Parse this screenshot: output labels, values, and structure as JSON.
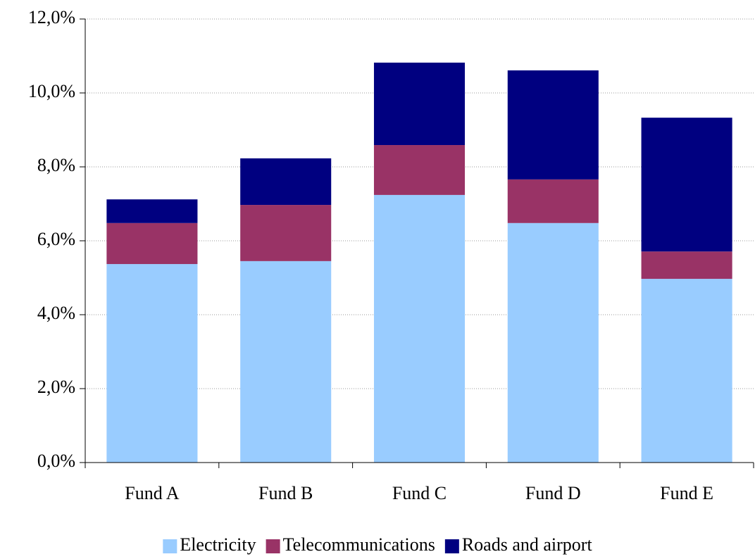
{
  "chart_data": {
    "type": "stacked_bar",
    "categories": [
      "Fund A",
      "Fund B",
      "Fund C",
      "Fund D",
      "Fund E"
    ],
    "series": [
      {
        "name": "Electricity",
        "color": "#99ccff",
        "values": [
          5.37,
          5.45,
          7.24,
          6.48,
          4.97
        ]
      },
      {
        "name": "Telecommunications",
        "color": "#993366",
        "values": [
          1.11,
          1.52,
          1.35,
          1.18,
          0.74
        ]
      },
      {
        "name": "Roads and airport",
        "color": "#000080",
        "values": [
          0.64,
          1.26,
          2.23,
          2.95,
          3.62
        ]
      }
    ],
    "ylim": [
      0,
      12
    ],
    "yticks": [
      {
        "value": 0,
        "label": "0,0%"
      },
      {
        "value": 2,
        "label": "2,0%"
      },
      {
        "value": 4,
        "label": "4,0%"
      },
      {
        "value": 6,
        "label": "6,0%"
      },
      {
        "value": 8,
        "label": "8,0%"
      },
      {
        "value": 10,
        "label": "10,0%"
      },
      {
        "value": 12,
        "label": "12,0%"
      }
    ],
    "grid": true,
    "legend": "bottom"
  }
}
